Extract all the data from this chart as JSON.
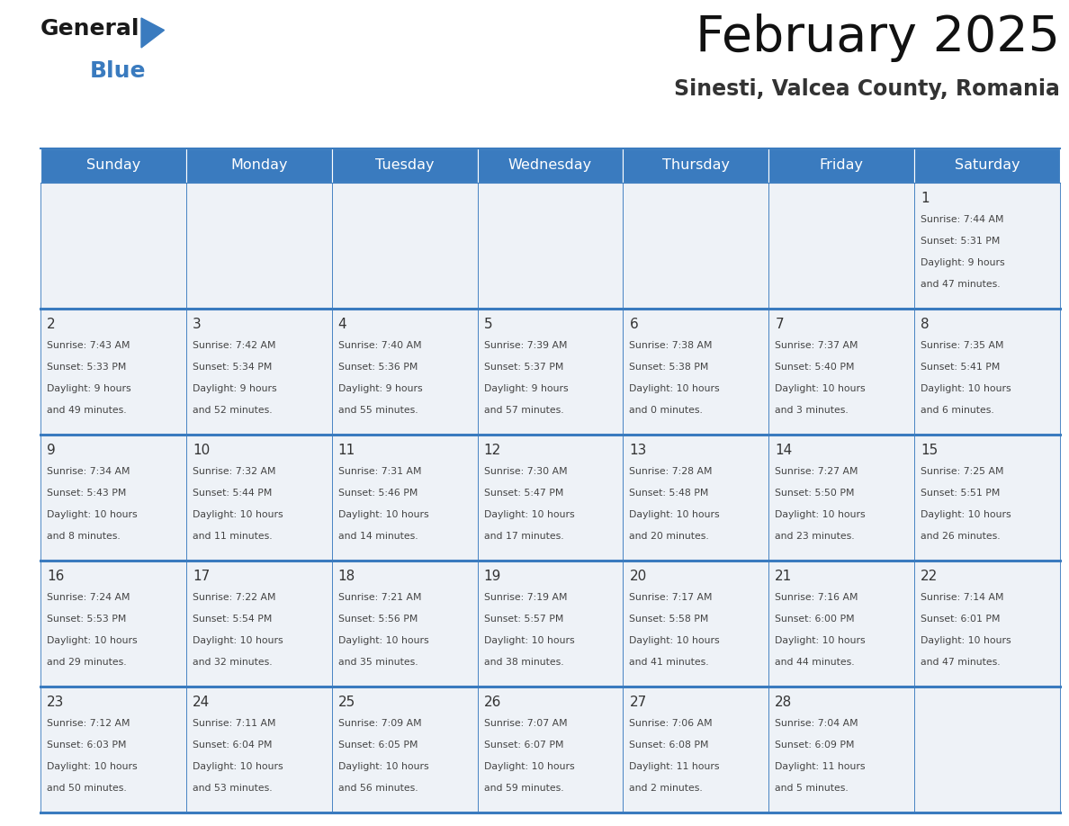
{
  "title": "February 2025",
  "subtitle": "Sinesti, Valcea County, Romania",
  "header_color": "#3a7bbf",
  "header_text_color": "#ffffff",
  "day_names": [
    "Sunday",
    "Monday",
    "Tuesday",
    "Wednesday",
    "Thursday",
    "Friday",
    "Saturday"
  ],
  "background_color": "#ffffff",
  "cell_bg_color": "#eef2f7",
  "border_color": "#3a7bbf",
  "text_color": "#333333",
  "day_number_color": "#333333",
  "info_text_color": "#444444",
  "calendar_data": [
    [
      {
        "day": null,
        "sunrise": null,
        "sunset": null,
        "daylight": null
      },
      {
        "day": null,
        "sunrise": null,
        "sunset": null,
        "daylight": null
      },
      {
        "day": null,
        "sunrise": null,
        "sunset": null,
        "daylight": null
      },
      {
        "day": null,
        "sunrise": null,
        "sunset": null,
        "daylight": null
      },
      {
        "day": null,
        "sunrise": null,
        "sunset": null,
        "daylight": null
      },
      {
        "day": null,
        "sunrise": null,
        "sunset": null,
        "daylight": null
      },
      {
        "day": 1,
        "sunrise": "7:44 AM",
        "sunset": "5:31 PM",
        "daylight": "9 hours\nand 47 minutes."
      }
    ],
    [
      {
        "day": 2,
        "sunrise": "7:43 AM",
        "sunset": "5:33 PM",
        "daylight": "9 hours\nand 49 minutes."
      },
      {
        "day": 3,
        "sunrise": "7:42 AM",
        "sunset": "5:34 PM",
        "daylight": "9 hours\nand 52 minutes."
      },
      {
        "day": 4,
        "sunrise": "7:40 AM",
        "sunset": "5:36 PM",
        "daylight": "9 hours\nand 55 minutes."
      },
      {
        "day": 5,
        "sunrise": "7:39 AM",
        "sunset": "5:37 PM",
        "daylight": "9 hours\nand 57 minutes."
      },
      {
        "day": 6,
        "sunrise": "7:38 AM",
        "sunset": "5:38 PM",
        "daylight": "10 hours\nand 0 minutes."
      },
      {
        "day": 7,
        "sunrise": "7:37 AM",
        "sunset": "5:40 PM",
        "daylight": "10 hours\nand 3 minutes."
      },
      {
        "day": 8,
        "sunrise": "7:35 AM",
        "sunset": "5:41 PM",
        "daylight": "10 hours\nand 6 minutes."
      }
    ],
    [
      {
        "day": 9,
        "sunrise": "7:34 AM",
        "sunset": "5:43 PM",
        "daylight": "10 hours\nand 8 minutes."
      },
      {
        "day": 10,
        "sunrise": "7:32 AM",
        "sunset": "5:44 PM",
        "daylight": "10 hours\nand 11 minutes."
      },
      {
        "day": 11,
        "sunrise": "7:31 AM",
        "sunset": "5:46 PM",
        "daylight": "10 hours\nand 14 minutes."
      },
      {
        "day": 12,
        "sunrise": "7:30 AM",
        "sunset": "5:47 PM",
        "daylight": "10 hours\nand 17 minutes."
      },
      {
        "day": 13,
        "sunrise": "7:28 AM",
        "sunset": "5:48 PM",
        "daylight": "10 hours\nand 20 minutes."
      },
      {
        "day": 14,
        "sunrise": "7:27 AM",
        "sunset": "5:50 PM",
        "daylight": "10 hours\nand 23 minutes."
      },
      {
        "day": 15,
        "sunrise": "7:25 AM",
        "sunset": "5:51 PM",
        "daylight": "10 hours\nand 26 minutes."
      }
    ],
    [
      {
        "day": 16,
        "sunrise": "7:24 AM",
        "sunset": "5:53 PM",
        "daylight": "10 hours\nand 29 minutes."
      },
      {
        "day": 17,
        "sunrise": "7:22 AM",
        "sunset": "5:54 PM",
        "daylight": "10 hours\nand 32 minutes."
      },
      {
        "day": 18,
        "sunrise": "7:21 AM",
        "sunset": "5:56 PM",
        "daylight": "10 hours\nand 35 minutes."
      },
      {
        "day": 19,
        "sunrise": "7:19 AM",
        "sunset": "5:57 PM",
        "daylight": "10 hours\nand 38 minutes."
      },
      {
        "day": 20,
        "sunrise": "7:17 AM",
        "sunset": "5:58 PM",
        "daylight": "10 hours\nand 41 minutes."
      },
      {
        "day": 21,
        "sunrise": "7:16 AM",
        "sunset": "6:00 PM",
        "daylight": "10 hours\nand 44 minutes."
      },
      {
        "day": 22,
        "sunrise": "7:14 AM",
        "sunset": "6:01 PM",
        "daylight": "10 hours\nand 47 minutes."
      }
    ],
    [
      {
        "day": 23,
        "sunrise": "7:12 AM",
        "sunset": "6:03 PM",
        "daylight": "10 hours\nand 50 minutes."
      },
      {
        "day": 24,
        "sunrise": "7:11 AM",
        "sunset": "6:04 PM",
        "daylight": "10 hours\nand 53 minutes."
      },
      {
        "day": 25,
        "sunrise": "7:09 AM",
        "sunset": "6:05 PM",
        "daylight": "10 hours\nand 56 minutes."
      },
      {
        "day": 26,
        "sunrise": "7:07 AM",
        "sunset": "6:07 PM",
        "daylight": "10 hours\nand 59 minutes."
      },
      {
        "day": 27,
        "sunrise": "7:06 AM",
        "sunset": "6:08 PM",
        "daylight": "11 hours\nand 2 minutes."
      },
      {
        "day": 28,
        "sunrise": "7:04 AM",
        "sunset": "6:09 PM",
        "daylight": "11 hours\nand 5 minutes."
      },
      {
        "day": null,
        "sunrise": null,
        "sunset": null,
        "daylight": null
      }
    ]
  ],
  "fig_width": 11.88,
  "fig_height": 9.18,
  "dpi": 100
}
